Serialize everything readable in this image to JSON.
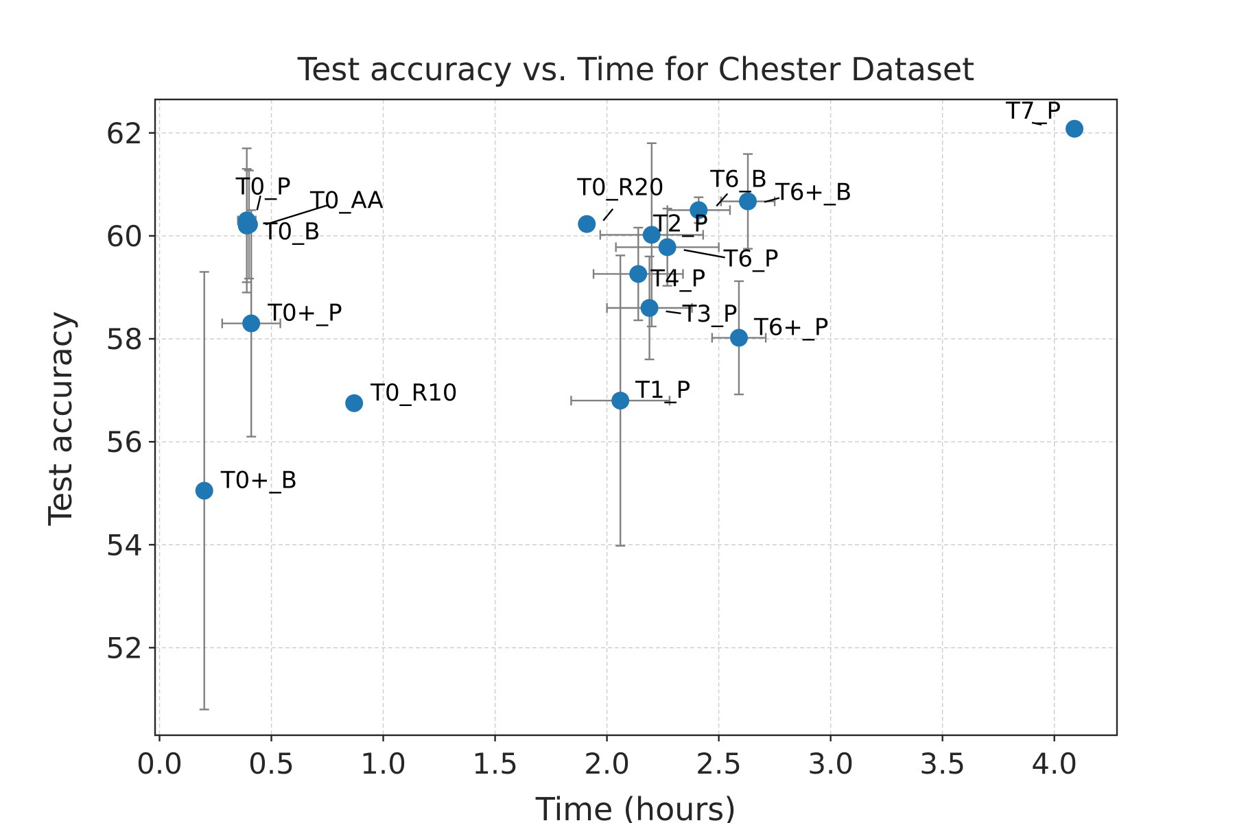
{
  "chart_data": {
    "type": "scatter",
    "title": "Test accuracy vs. Time for Chester Dataset",
    "xlabel": "Time (hours)",
    "ylabel": "Test accuracy",
    "xlim": [
      -0.02,
      4.28
    ],
    "ylim": [
      50.3,
      62.65
    ],
    "xticks": [
      "0.0",
      "0.5",
      "1.0",
      "1.5",
      "2.0",
      "2.5",
      "3.0",
      "3.5",
      "4.0"
    ],
    "xtick_values": [
      0.0,
      0.5,
      1.0,
      1.5,
      2.0,
      2.5,
      3.0,
      3.5,
      4.0
    ],
    "yticks": [
      "52",
      "54",
      "56",
      "58",
      "60",
      "62"
    ],
    "ytick_values": [
      52,
      54,
      56,
      58,
      60,
      62
    ],
    "grid": true,
    "marker_color": "#1f77b4",
    "errorbar_color": "#808080",
    "points": [
      {
        "label": "T0_P",
        "x": 0.39,
        "y": 60.3,
        "xerr": 0.04,
        "yerr": 1.4
      },
      {
        "label": "T0_AA",
        "x": 0.4,
        "y": 60.22,
        "xerr": 0.03,
        "yerr": 1.05
      },
      {
        "label": "T0_B",
        "x": 0.39,
        "y": 60.2,
        "xerr": 0.03,
        "yerr": 1.1
      },
      {
        "label": "T0+_P",
        "x": 0.41,
        "y": 58.3,
        "xerr": 0.13,
        "yerr": 2.2
      },
      {
        "label": "T0_R10",
        "x": 0.87,
        "y": 56.75,
        "xerr": 0.0,
        "yerr": 0.0
      },
      {
        "label": "T0+_B",
        "x": 0.2,
        "y": 55.05,
        "xerr": 0.0,
        "yerr": 4.25
      },
      {
        "label": "T0_R20",
        "x": 1.91,
        "y": 60.23,
        "xerr": 0.0,
        "yerr": 0.0
      },
      {
        "label": "T2_P",
        "x": 2.2,
        "y": 60.02,
        "xerr": 0.23,
        "yerr": 1.78
      },
      {
        "label": "T6_B",
        "x": 2.41,
        "y": 60.5,
        "xerr": 0.14,
        "yerr": 0.25
      },
      {
        "label": "T6+_B",
        "x": 2.63,
        "y": 60.67,
        "xerr": 0.12,
        "yerr": 0.92
      },
      {
        "label": "T6_P",
        "x": 2.27,
        "y": 59.78,
        "xerr": 0.23,
        "yerr": 0.75
      },
      {
        "label": "T4_P",
        "x": 2.14,
        "y": 59.26,
        "xerr": 0.2,
        "yerr": 0.9
      },
      {
        "label": "T3_P",
        "x": 2.19,
        "y": 58.6,
        "xerr": 0.19,
        "yerr": 1.0
      },
      {
        "label": "T6+_P",
        "x": 2.59,
        "y": 58.02,
        "xerr": 0.12,
        "yerr": 1.1
      },
      {
        "label": "T1_P",
        "x": 2.06,
        "y": 56.8,
        "xerr": 0.22,
        "yerr": 2.82
      },
      {
        "label": "T7_P",
        "x": 4.09,
        "y": 62.08,
        "xerr": 0.0,
        "yerr": 0.0
      }
    ]
  }
}
